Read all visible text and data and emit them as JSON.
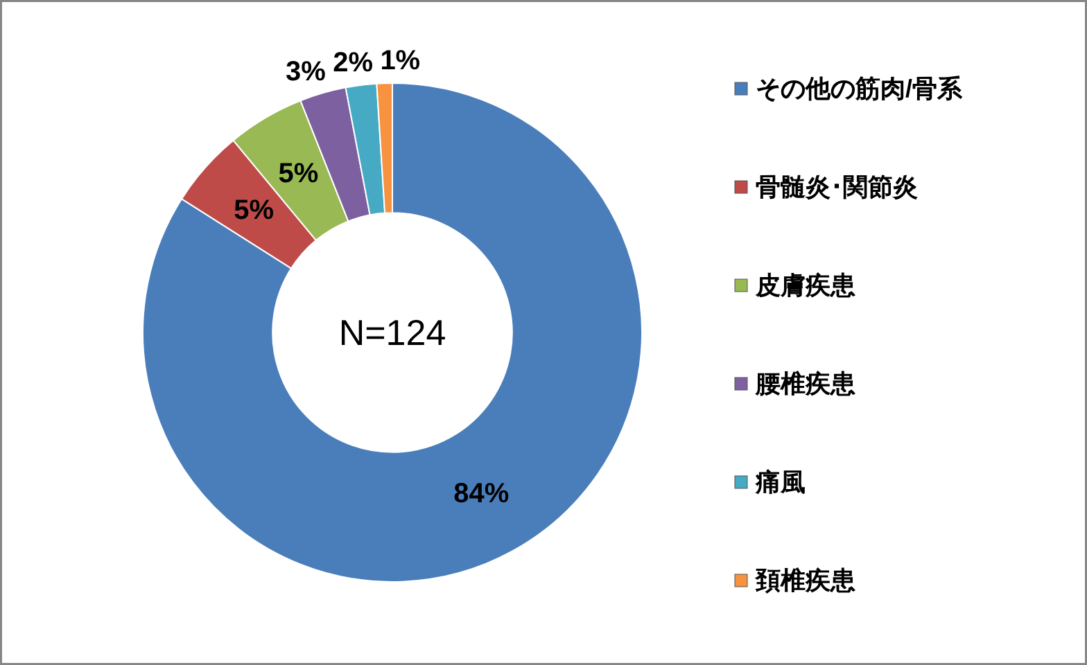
{
  "chart_data": {
    "type": "donut",
    "categories": [
      "その他の筋肉/骨系",
      "骨髄炎･関節炎",
      "皮膚疾患",
      "腰椎疾患",
      "痛風",
      "頚椎疾患"
    ],
    "values": [
      84,
      5,
      5,
      3,
      2,
      1
    ],
    "colors": [
      "#4a7ebb",
      "#be4b48",
      "#98b954",
      "#7d60a0",
      "#46aac5",
      "#f69240"
    ],
    "value_labels": [
      "84%",
      "5%",
      "5%",
      "3%",
      "2%",
      "1%"
    ],
    "annotations": [
      "N=124"
    ],
    "legend": "right"
  }
}
